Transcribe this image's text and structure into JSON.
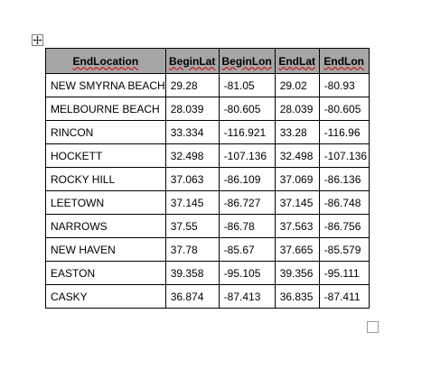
{
  "table": {
    "headers": [
      "EndLocation",
      "BeginLat",
      "BeginLon",
      "EndLat",
      "EndLon"
    ],
    "rows": [
      [
        "NEW SMYRNA BEACH",
        "29.28",
        "-81.05",
        "29.02",
        "-80.93"
      ],
      [
        "MELBOURNE BEACH",
        "28.039",
        "-80.605",
        "28.039",
        "-80.605"
      ],
      [
        "RINCON",
        "33.334",
        "-116.921",
        "33.28",
        "-116.96"
      ],
      [
        "HOCKETT",
        "32.498",
        "-107.136",
        "32.498",
        "-107.136"
      ],
      [
        "ROCKY HILL",
        "37.063",
        "-86.109",
        "37.069",
        "-86.136"
      ],
      [
        "LEETOWN",
        "37.145",
        "-86.727",
        "37.145",
        "-86.748"
      ],
      [
        "NARROWS",
        "37.55",
        "-86.78",
        "37.563",
        "-86.756"
      ],
      [
        "NEW HAVEN",
        "37.78",
        "-85.67",
        "37.665",
        "-85.579"
      ],
      [
        "EASTON",
        "39.358",
        "-95.105",
        "39.356",
        "-95.111"
      ],
      [
        "CASKY",
        "36.874",
        "-87.413",
        "36.835",
        "-87.411"
      ]
    ]
  },
  "colors": {
    "header_background": "#a6a6a6",
    "border": "#000000",
    "spellcheck_underline": "#d00000"
  },
  "icons": {
    "move_handle": "move-cross-arrows-icon",
    "resize_handle": "table-resize-handle-icon"
  }
}
